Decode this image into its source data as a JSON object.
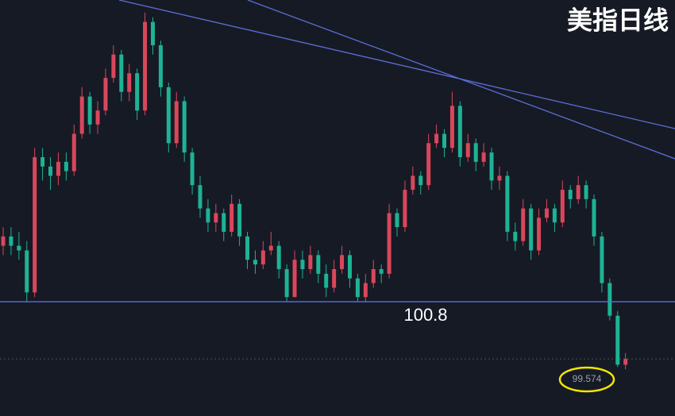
{
  "chart_data": {
    "type": "candlestick",
    "title": "美指日线",
    "up_color": "#d9475b",
    "down_color": "#1db394",
    "background": "#161a25",
    "ylim": [
      98.35,
      107.27
    ],
    "level": {
      "value": 100.8,
      "label": "100.8"
    },
    "last_price": {
      "value": 99.574,
      "label": "99.574"
    },
    "ohlc": [
      [
        102.0,
        102.4,
        101.8,
        102.2
      ],
      [
        102.2,
        102.4,
        101.8,
        102.0
      ],
      [
        102.0,
        102.3,
        101.7,
        101.9
      ],
      [
        101.9,
        102.1,
        100.8,
        101.0
      ],
      [
        101.0,
        104.1,
        100.9,
        103.9
      ],
      [
        103.9,
        104.1,
        103.4,
        103.7
      ],
      [
        103.7,
        103.9,
        103.2,
        103.5
      ],
      [
        103.5,
        104.0,
        103.3,
        103.8
      ],
      [
        103.8,
        104.0,
        103.4,
        103.6
      ],
      [
        103.6,
        104.6,
        103.5,
        104.4
      ],
      [
        104.4,
        105.4,
        104.3,
        105.2
      ],
      [
        105.2,
        105.3,
        104.4,
        104.6
      ],
      [
        104.6,
        105.1,
        104.4,
        104.9
      ],
      [
        104.9,
        105.8,
        104.8,
        105.6
      ],
      [
        105.6,
        106.3,
        105.5,
        106.1
      ],
      [
        106.1,
        106.2,
        105.1,
        105.3
      ],
      [
        105.3,
        105.9,
        105.1,
        105.7
      ],
      [
        105.7,
        105.8,
        104.7,
        104.9
      ],
      [
        104.9,
        107.0,
        104.8,
        106.8
      ],
      [
        106.8,
        106.9,
        106.1,
        106.3
      ],
      [
        106.3,
        106.4,
        105.2,
        105.4
      ],
      [
        105.4,
        105.5,
        104.0,
        104.2
      ],
      [
        104.2,
        105.3,
        104.1,
        105.1
      ],
      [
        105.1,
        105.2,
        103.8,
        104.0
      ],
      [
        104.0,
        104.1,
        103.1,
        103.3
      ],
      [
        103.3,
        103.5,
        102.6,
        102.8
      ],
      [
        102.8,
        103.0,
        102.3,
        102.5
      ],
      [
        102.5,
        102.9,
        102.3,
        102.7
      ],
      [
        102.7,
        102.8,
        102.1,
        102.3
      ],
      [
        102.3,
        103.1,
        102.2,
        102.9
      ],
      [
        102.9,
        103.0,
        102.0,
        102.2
      ],
      [
        102.2,
        102.3,
        101.5,
        101.7
      ],
      [
        101.7,
        101.9,
        101.4,
        101.6
      ],
      [
        101.6,
        102.1,
        101.5,
        101.9
      ],
      [
        101.9,
        102.3,
        101.8,
        102.0
      ],
      [
        102.0,
        102.1,
        101.3,
        101.5
      ],
      [
        101.5,
        101.6,
        100.8,
        100.9
      ],
      [
        100.9,
        101.9,
        100.9,
        101.7
      ],
      [
        101.7,
        101.9,
        101.3,
        101.5
      ],
      [
        101.5,
        102.0,
        101.4,
        101.8
      ],
      [
        101.8,
        101.9,
        101.2,
        101.4
      ],
      [
        101.4,
        101.6,
        100.9,
        101.1
      ],
      [
        101.1,
        101.7,
        101.0,
        101.5
      ],
      [
        101.5,
        102.0,
        101.4,
        101.8
      ],
      [
        101.8,
        101.9,
        101.1,
        101.3
      ],
      [
        101.3,
        101.4,
        100.8,
        100.9
      ],
      [
        100.9,
        101.4,
        100.8,
        101.2
      ],
      [
        101.2,
        101.7,
        101.1,
        101.5
      ],
      [
        101.5,
        101.6,
        101.2,
        101.4
      ],
      [
        101.4,
        102.9,
        101.3,
        102.7
      ],
      [
        102.7,
        102.8,
        102.2,
        102.4
      ],
      [
        102.4,
        103.4,
        102.3,
        103.2
      ],
      [
        103.2,
        103.7,
        103.1,
        103.5
      ],
      [
        103.5,
        103.6,
        103.1,
        103.3
      ],
      [
        103.3,
        104.4,
        103.2,
        104.2
      ],
      [
        104.2,
        104.6,
        104.1,
        104.4
      ],
      [
        104.4,
        104.5,
        103.9,
        104.1
      ],
      [
        104.1,
        105.3,
        104.0,
        105.0
      ],
      [
        105.0,
        105.1,
        103.7,
        103.9
      ],
      [
        103.9,
        104.4,
        103.8,
        104.2
      ],
      [
        104.2,
        104.3,
        103.6,
        103.8
      ],
      [
        103.8,
        104.2,
        103.7,
        104.0
      ],
      [
        104.0,
        104.1,
        103.2,
        103.4
      ],
      [
        103.4,
        103.7,
        103.2,
        103.5
      ],
      [
        103.5,
        103.6,
        102.1,
        102.3
      ],
      [
        102.3,
        102.5,
        101.9,
        102.1
      ],
      [
        102.1,
        103.0,
        102.0,
        102.8
      ],
      [
        102.8,
        102.9,
        101.7,
        101.9
      ],
      [
        101.9,
        102.8,
        101.8,
        102.6
      ],
      [
        102.6,
        103.0,
        102.5,
        102.8
      ],
      [
        102.8,
        102.9,
        102.3,
        102.5
      ],
      [
        102.5,
        103.4,
        102.4,
        103.2
      ],
      [
        103.2,
        103.3,
        102.8,
        103.0
      ],
      [
        103.0,
        103.5,
        102.9,
        103.3
      ],
      [
        103.3,
        103.4,
        102.8,
        103.0
      ],
      [
        103.0,
        103.1,
        102.0,
        102.2
      ],
      [
        102.2,
        102.3,
        101.0,
        101.2
      ],
      [
        101.2,
        101.3,
        100.4,
        100.5
      ],
      [
        100.5,
        100.6,
        99.4,
        99.45
      ],
      [
        99.45,
        99.7,
        99.35,
        99.574
      ]
    ]
  }
}
